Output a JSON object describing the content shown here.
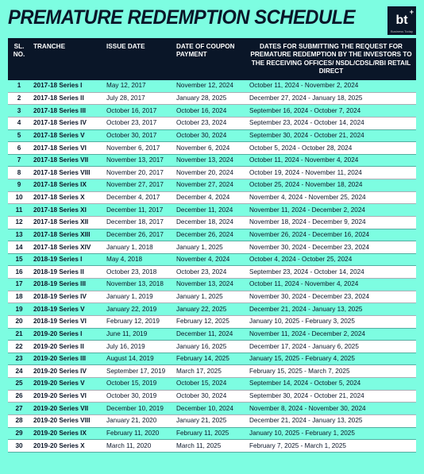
{
  "title": "PREMATURE REDEMPTION SCHEDULE",
  "logo": {
    "text": "bt",
    "sub": "Business Today"
  },
  "columns": {
    "c1": "SL. NO.",
    "c2": "TRANCHE",
    "c3": "ISSUE DATE",
    "c4": "DATE OF COUPON PAYMENT",
    "c5": "DATES FOR SUBMITTING THE REQUEST FOR PREMATURE REDEMPTION BY THE INVESTORS TO THE RECEIVING OFFICES/ NSDL/CDSL/RBI RETAIL DIRECT"
  },
  "rows": [
    {
      "n": "1",
      "tranche": "2017-18 Series I",
      "issue": "May 12, 2017",
      "coupon": "November 12, 2024",
      "window": "October 11, 2024 - November 2, 2024"
    },
    {
      "n": "2",
      "tranche": "2017-18 Series II",
      "issue": "July 28, 2017",
      "coupon": "January 28, 2025",
      "window": "December 27, 2024 - January 18, 2025"
    },
    {
      "n": "3",
      "tranche": "2017-18 Series III",
      "issue": "October 16, 2017",
      "coupon": "October 16, 2024",
      "window": "September 16, 2024 - October 7, 2024"
    },
    {
      "n": "4",
      "tranche": "2017-18 Series IV",
      "issue": "October 23, 2017",
      "coupon": "October 23, 2024",
      "window": "September 23, 2024 - October 14, 2024"
    },
    {
      "n": "5",
      "tranche": "2017-18 Series V",
      "issue": "October 30, 2017",
      "coupon": "October 30, 2024",
      "window": "September 30, 2024 - October 21, 2024"
    },
    {
      "n": "6",
      "tranche": "2017-18 Series VI",
      "issue": "November 6, 2017",
      "coupon": "November 6, 2024",
      "window": "October 5, 2024 - October 28, 2024"
    },
    {
      "n": "7",
      "tranche": "2017-18 Series VII",
      "issue": "November 13, 2017",
      "coupon": "November 13, 2024",
      "window": "October 11, 2024 - November 4, 2024"
    },
    {
      "n": "8",
      "tranche": "2017-18 Series VIII",
      "issue": "November 20, 2017",
      "coupon": "November 20, 2024",
      "window": "October 19, 2024 - November 11, 2024"
    },
    {
      "n": "9",
      "tranche": "2017-18 Series IX",
      "issue": "November 27, 2017",
      "coupon": "November 27, 2024",
      "window": "October 25, 2024 - November 18, 2024"
    },
    {
      "n": "10",
      "tranche": "2017-18 Series X",
      "issue": "December 4, 2017",
      "coupon": "December 4, 2024",
      "window": "November 4, 2024 - November 25, 2024"
    },
    {
      "n": "11",
      "tranche": "2017-18 Series XI",
      "issue": "December 11, 2017",
      "coupon": "December 11, 2024",
      "window": "November 11, 2024 - December 2, 2024"
    },
    {
      "n": "12",
      "tranche": "2017-18 Series XII",
      "issue": "December 18, 2017",
      "coupon": "December 18, 2024",
      "window": "November 18, 2024 - December 9, 2024"
    },
    {
      "n": "13",
      "tranche": "2017-18 Series XIII",
      "issue": "December 26, 2017",
      "coupon": "December 26, 2024",
      "window": "November 26, 2024 - December 16, 2024"
    },
    {
      "n": "14",
      "tranche": "2017-18 Series XIV",
      "issue": "January 1, 2018",
      "coupon": "January 1, 2025",
      "window": "November 30, 2024 - December 23, 2024"
    },
    {
      "n": "15",
      "tranche": "2018-19 Series I",
      "issue": "May 4, 2018",
      "coupon": "November 4, 2024",
      "window": "October 4, 2024 - October 25, 2024"
    },
    {
      "n": "16",
      "tranche": "2018-19 Series II",
      "issue": "October 23, 2018",
      "coupon": "October 23, 2024",
      "window": "September 23, 2024 - October 14, 2024"
    },
    {
      "n": "17",
      "tranche": "2018-19 Series III",
      "issue": "November 13, 2018",
      "coupon": "November 13, 2024",
      "window": "October 11, 2024 - November 4, 2024"
    },
    {
      "n": "18",
      "tranche": "2018-19 Series IV",
      "issue": "January 1, 2019",
      "coupon": "January 1, 2025",
      "window": "November 30, 2024 - December 23, 2024"
    },
    {
      "n": "19",
      "tranche": "2018-19 Series V",
      "issue": "January 22, 2019",
      "coupon": "January 22, 2025",
      "window": "December 21, 2024 - January 13, 2025"
    },
    {
      "n": "20",
      "tranche": "2018-19 Series VI",
      "issue": "February 12, 2019",
      "coupon": "February 12, 2025",
      "window": "January 10, 2025 - February 3, 2025"
    },
    {
      "n": "21",
      "tranche": "2019-20 Series I",
      "issue": "June 11, 2019",
      "coupon": "December 11, 2024",
      "window": "November 11, 2024 - December 2, 2024"
    },
    {
      "n": "22",
      "tranche": "2019-20 Series II",
      "issue": "July 16, 2019",
      "coupon": "January 16, 2025",
      "window": "December 17, 2024 - January 6, 2025"
    },
    {
      "n": "23",
      "tranche": "2019-20 Series III",
      "issue": "August 14, 2019",
      "coupon": "February 14, 2025",
      "window": "January 15, 2025 - February 4, 2025"
    },
    {
      "n": "24",
      "tranche": "2019-20 Series IV",
      "issue": "September 17, 2019",
      "coupon": "March 17, 2025",
      "window": "February 15, 2025 - March 7, 2025"
    },
    {
      "n": "25",
      "tranche": "2019-20 Series V",
      "issue": "October 15, 2019",
      "coupon": "October 15, 2024",
      "window": "September 14, 2024 - October 5, 2024"
    },
    {
      "n": "26",
      "tranche": "2019-20 Series VI",
      "issue": "October 30, 2019",
      "coupon": "October 30, 2024",
      "window": "September 30, 2024 - October 21, 2024"
    },
    {
      "n": "27",
      "tranche": "2019-20 Series VII",
      "issue": "December 10, 2019",
      "coupon": "December 10, 2024",
      "window": "November 8, 2024 - November 30, 2024"
    },
    {
      "n": "28",
      "tranche": "2019-20 Series VIII",
      "issue": "January 21, 2020",
      "coupon": "January 21, 2025",
      "window": "December 21, 2024 - January 13, 2025"
    },
    {
      "n": "29",
      "tranche": "2019-20 Series IX",
      "issue": "February 11, 2020",
      "coupon": "February 11, 2025",
      "window": "January 10, 2025 - February 1, 2025"
    },
    {
      "n": "30",
      "tranche": "2019-20 Series X",
      "issue": "March 11, 2020",
      "coupon": "March 11, 2025",
      "window": "February 7, 2025 - March 1, 2025"
    }
  ],
  "colors": {
    "background": "#7dfde1",
    "headerBg": "#0a1628",
    "headerText": "#ffffff",
    "rowAltBg": "#ffffff",
    "text": "#0a1628",
    "borderColor": "rgba(10,22,40,0.35)"
  },
  "typography": {
    "title_fontsize": 25,
    "table_fontsize": 8.2,
    "font_family": "Arial"
  }
}
